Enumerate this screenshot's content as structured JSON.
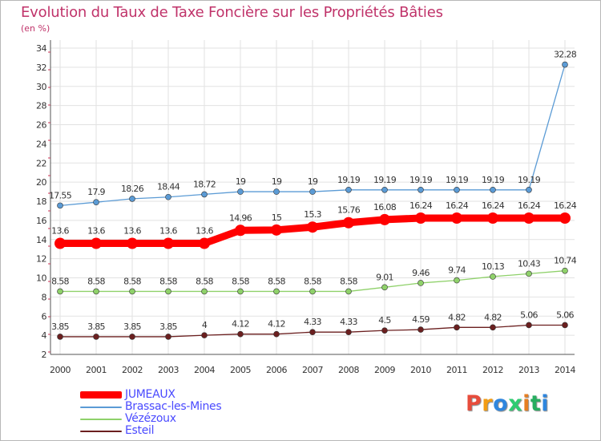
{
  "title": "Evolution du Taux de Taxe Foncière sur les Propriétés Bâties",
  "subtitle": "(en %)",
  "logo": {
    "letters": [
      "P",
      "r",
      "o",
      "x",
      "i",
      "t",
      "i"
    ],
    "colors": [
      "#e74c3c",
      "#f39c12",
      "#2e86de",
      "#2ecc71",
      "#e67e22",
      "#27ae60",
      "#2e86de"
    ]
  },
  "chart_data": {
    "type": "line",
    "x": [
      "2000",
      "2001",
      "2002",
      "2003",
      "2004",
      "2005",
      "2006",
      "2007",
      "2008",
      "2009",
      "2010",
      "2011",
      "2012",
      "2013",
      "2014"
    ],
    "ylim": [
      2,
      34
    ],
    "yticks": [
      2,
      4,
      6,
      8,
      10,
      12,
      14,
      16,
      18,
      20,
      22,
      24,
      26,
      28,
      30,
      32,
      34
    ],
    "grid": true,
    "series": [
      {
        "name": "JUMEAUX",
        "color": "#ff0000",
        "values": [
          13.6,
          13.6,
          13.6,
          13.6,
          13.6,
          14.96,
          15,
          15.3,
          15.76,
          16.08,
          16.24,
          16.24,
          16.24,
          16.24,
          16.24
        ],
        "labels": [
          "13.6",
          "13.6",
          "13.6",
          "13.6",
          "13.6",
          "14.96",
          "15",
          "15.3",
          "15.76",
          "16.08",
          "16.24",
          "16.24",
          "16.24",
          "16.24",
          "16.24"
        ]
      },
      {
        "name": "Brassac-les-Mines",
        "color": "#5b9bd5",
        "values": [
          17.55,
          17.9,
          18.26,
          18.44,
          18.72,
          19,
          19,
          19,
          19.19,
          19.19,
          19.19,
          19.19,
          19.19,
          19.19,
          32.28
        ],
        "labels": [
          "17.55",
          "17.9",
          "18.26",
          "18.44",
          "18.72",
          "19",
          "19",
          "19",
          "19.19",
          "19.19",
          "19.19",
          "19.19",
          "19.19",
          "19.19",
          "32.28"
        ]
      },
      {
        "name": "Vézézoux",
        "color": "#8fd16a",
        "values": [
          8.58,
          8.58,
          8.58,
          8.58,
          8.58,
          8.58,
          8.58,
          8.58,
          8.58,
          9.01,
          9.46,
          9.74,
          10.13,
          10.43,
          10.74
        ],
        "labels": [
          "8.58",
          "8.58",
          "8.58",
          "8.58",
          "8.58",
          "8.58",
          "8.58",
          "8.58",
          "8.58",
          "9.01",
          "9.46",
          "9.74",
          "10.13",
          "10.43",
          "10.74"
        ]
      },
      {
        "name": "Esteil",
        "color": "#6b1f1f",
        "values": [
          3.85,
          3.85,
          3.85,
          3.85,
          4,
          4.12,
          4.12,
          4.33,
          4.33,
          4.5,
          4.59,
          4.82,
          4.82,
          5.06,
          5.06
        ],
        "labels": [
          "3.85",
          "3.85",
          "3.85",
          "3.85",
          "4",
          "4.12",
          "4.12",
          "4.33",
          "4.33",
          "4.5",
          "4.59",
          "4.82",
          "4.82",
          "5.06",
          "5.06"
        ]
      }
    ]
  }
}
